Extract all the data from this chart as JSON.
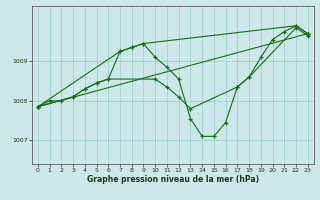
{
  "bg_color": "#cce8e8",
  "grid_color": "#99cccc",
  "line_color": "#1a6b1a",
  "marker_color": "#1a6b1a",
  "title": "Graphe pression niveau de la mer (hPa)",
  "title_color": "#1a3a1a",
  "tick_color": "#1a3a1a",
  "xlim": [
    -0.5,
    23.5
  ],
  "ylim": [
    1006.4,
    1010.4
  ],
  "yticks": [
    1007,
    1008,
    1009
  ],
  "xticks": [
    0,
    1,
    2,
    3,
    4,
    5,
    6,
    7,
    8,
    9,
    10,
    11,
    12,
    13,
    14,
    15,
    16,
    17,
    18,
    19,
    20,
    21,
    22,
    23
  ],
  "series": [
    {
      "x": [
        0,
        1,
        2,
        3,
        4,
        5,
        6,
        7,
        8,
        9,
        10,
        11,
        12,
        13,
        14,
        15,
        16,
        17,
        18,
        19,
        20,
        21,
        22,
        23
      ],
      "y": [
        1007.85,
        1008.0,
        1008.0,
        1008.1,
        1008.3,
        1008.45,
        1008.55,
        1009.25,
        1009.35,
        1009.45,
        1009.1,
        1008.85,
        1008.55,
        1007.55,
        1007.1,
        1007.1,
        1007.45,
        1008.35,
        1008.6,
        1009.1,
        1009.55,
        1009.75,
        1009.9,
        1009.7
      ]
    },
    {
      "x": [
        0,
        23
      ],
      "y": [
        1007.85,
        1009.7
      ]
    },
    {
      "x": [
        0,
        7,
        8,
        9,
        22,
        23
      ],
      "y": [
        1007.85,
        1009.25,
        1009.35,
        1009.45,
        1009.9,
        1009.7
      ]
    },
    {
      "x": [
        0,
        3,
        4,
        5,
        6,
        10,
        11,
        12,
        13,
        17,
        18,
        22,
        23
      ],
      "y": [
        1007.85,
        1008.1,
        1008.3,
        1008.45,
        1008.55,
        1008.55,
        1008.35,
        1008.1,
        1007.8,
        1008.35,
        1008.6,
        1009.85,
        1009.65
      ]
    }
  ]
}
